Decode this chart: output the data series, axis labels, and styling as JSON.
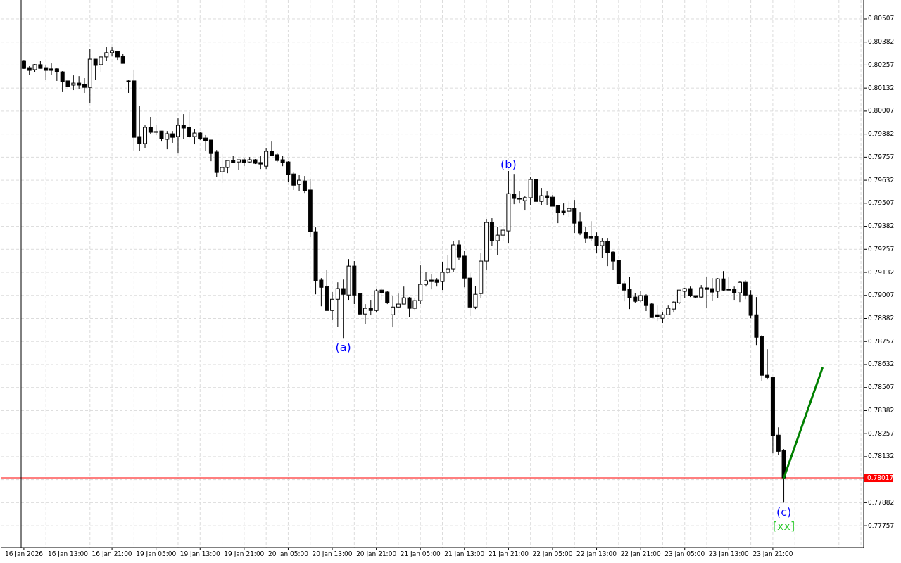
{
  "chart_data": {
    "type": "candlestick",
    "categories": [
      "16 Jan 2026",
      null,
      null,
      null,
      null,
      null,
      null,
      null,
      "16 Jan 13:00",
      null,
      null,
      null,
      null,
      null,
      null,
      null,
      "16 Jan 21:00",
      null,
      null,
      null,
      null,
      null,
      null,
      null,
      "19 Jan 05:00",
      null,
      null,
      null,
      null,
      null,
      null,
      null,
      "19 Jan 13:00",
      null,
      null,
      null,
      null,
      null,
      null,
      null,
      "19 Jan 21:00",
      null,
      null,
      null,
      null,
      null,
      null,
      null,
      "20 Jan 05:00",
      null,
      null,
      null,
      null,
      null,
      null,
      null,
      "20 Jan 13:00",
      null,
      null,
      null,
      null,
      null,
      null,
      null,
      "20 Jan 21:00",
      null,
      null,
      null,
      null,
      null,
      null,
      null,
      "21 Jan 05:00",
      null,
      null,
      null,
      null,
      null,
      null,
      null,
      "21 Jan 13:00",
      null,
      null,
      null,
      null,
      null,
      null,
      null,
      "21 Jan 21:00",
      null,
      null,
      null,
      null,
      null,
      null,
      null,
      "22 Jan 05:00",
      null,
      null,
      null,
      null,
      null,
      null,
      null,
      "22 Jan 13:00",
      null,
      null,
      null,
      null,
      null,
      null,
      null,
      "22 Jan 21:00",
      null,
      null,
      null,
      null,
      null,
      null,
      null,
      "23 Jan 05:00",
      null,
      null,
      null,
      null,
      null,
      null,
      null,
      "23 Jan 13:00",
      null,
      null,
      null,
      null,
      null,
      null,
      null,
      "23 Jan 21:00",
      null,
      null,
      null,
      null,
      null,
      null,
      null,
      null,
      null,
      null,
      null,
      null,
      null,
      null,
      null,
      null
    ],
    "ohlc": [
      [
        0.80281,
        0.80285,
        0.80236,
        0.80239
      ],
      [
        0.80243,
        0.80251,
        0.80205,
        0.80228
      ],
      [
        0.80232,
        0.80262,
        0.8022,
        0.80259
      ],
      [
        0.80259,
        0.80281,
        0.80239,
        0.80239
      ],
      [
        0.80243,
        0.80259,
        0.80178,
        0.80228
      ],
      [
        0.80236,
        0.80266,
        0.80205,
        0.80228
      ],
      [
        0.80236,
        0.80239,
        0.80171,
        0.8022
      ],
      [
        0.8022,
        0.80224,
        0.8011,
        0.80167
      ],
      [
        0.80171,
        0.80182,
        0.80098,
        0.8014
      ],
      [
        0.80148,
        0.80201,
        0.80121,
        0.80159
      ],
      [
        0.80159,
        0.80197,
        0.80125,
        0.80148
      ],
      [
        0.80152,
        0.80186,
        0.80106,
        0.80136
      ],
      [
        0.80136,
        0.80346,
        0.80052,
        0.80289
      ],
      [
        0.80289,
        0.80289,
        0.80178,
        0.80255
      ],
      [
        0.80259,
        0.80308,
        0.8022,
        0.80301
      ],
      [
        0.80301,
        0.80354,
        0.80281,
        0.80324
      ],
      [
        0.80324,
        0.80354,
        0.80304,
        0.80335
      ],
      [
        0.80331,
        0.80335,
        0.80285,
        0.80301
      ],
      [
        0.80304,
        0.80316,
        0.80266,
        0.80266
      ],
      [
        0.80171,
        0.80174,
        0.80106,
        0.80171
      ],
      [
        0.80171,
        0.80232,
        0.79793,
        0.79865
      ],
      [
        0.79869,
        0.80037,
        0.79789,
        0.79831
      ],
      [
        0.79831,
        0.7993,
        0.79808,
        0.79919
      ],
      [
        0.79919,
        0.79976,
        0.79884,
        0.79892
      ],
      [
        0.79896,
        0.7993,
        0.79877,
        0.79892
      ],
      [
        0.79899,
        0.79899,
        0.79842,
        0.79857
      ],
      [
        0.79854,
        0.79899,
        0.798,
        0.79884
      ],
      [
        0.79884,
        0.79899,
        0.79835,
        0.79865
      ],
      [
        0.79869,
        0.79968,
        0.79777,
        0.7993
      ],
      [
        0.7993,
        0.79991,
        0.79854,
        0.79915
      ],
      [
        0.79919,
        0.80003,
        0.79861,
        0.79869
      ],
      [
        0.79869,
        0.79911,
        0.79827,
        0.79888
      ],
      [
        0.79888,
        0.79892,
        0.7985,
        0.79857
      ],
      [
        0.79861,
        0.79877,
        0.79789,
        0.79846
      ],
      [
        0.7985,
        0.7985,
        0.79735,
        0.79777
      ],
      [
        0.79785,
        0.79796,
        0.79651,
        0.79674
      ],
      [
        0.79678,
        0.79773,
        0.79617,
        0.79701
      ],
      [
        0.79701,
        0.79739,
        0.7967,
        0.79739
      ],
      [
        0.79739,
        0.79766,
        0.79728,
        0.79728
      ],
      [
        0.79731,
        0.79743,
        0.79689,
        0.79743
      ],
      [
        0.79743,
        0.7975,
        0.79708,
        0.79728
      ],
      [
        0.79731,
        0.79758,
        0.79724,
        0.79743
      ],
      [
        0.79743,
        0.79747,
        0.7972,
        0.79724
      ],
      [
        0.79728,
        0.79762,
        0.79693,
        0.7972
      ],
      [
        0.79708,
        0.79804,
        0.79693,
        0.79789
      ],
      [
        0.79789,
        0.79842,
        0.79766,
        0.79766
      ],
      [
        0.7977,
        0.79781,
        0.79731,
        0.79739
      ],
      [
        0.79743,
        0.79762,
        0.79708,
        0.79728
      ],
      [
        0.79731,
        0.79735,
        0.79621,
        0.79663
      ],
      [
        0.79666,
        0.79674,
        0.79579,
        0.79605
      ],
      [
        0.79609,
        0.79659,
        0.79575,
        0.79632
      ],
      [
        0.79628,
        0.79655,
        0.79563,
        0.79575
      ],
      [
        0.79579,
        0.7964,
        0.79323,
        0.79353
      ],
      [
        0.79353,
        0.79376,
        0.79013,
        0.79086
      ],
      [
        0.7909,
        0.79101,
        0.78948,
        0.79051
      ],
      [
        0.79055,
        0.79147,
        0.78925,
        0.78925
      ],
      [
        0.78925,
        0.79025,
        0.78876,
        0.78986
      ],
      [
        0.78986,
        0.79078,
        0.78838,
        0.79044
      ],
      [
        0.79044,
        0.79093,
        0.78776,
        0.79013
      ],
      [
        0.79009,
        0.79204,
        0.78983,
        0.79166
      ],
      [
        0.79166,
        0.79193,
        0.7896,
        0.79009
      ],
      [
        0.79017,
        0.79017,
        0.78902,
        0.78906
      ],
      [
        0.78906,
        0.7896,
        0.78853,
        0.78937
      ],
      [
        0.78937,
        0.78983,
        0.78899,
        0.78925
      ],
      [
        0.78925,
        0.7904,
        0.78914,
        0.79032
      ],
      [
        0.79036,
        0.79048,
        0.78983,
        0.79021
      ],
      [
        0.79025,
        0.79032,
        0.7896,
        0.78967
      ],
      [
        0.78902,
        0.79006,
        0.78834,
        0.78944
      ],
      [
        0.78944,
        0.79017,
        0.78937,
        0.7896
      ],
      [
        0.7896,
        0.79055,
        0.7896,
        0.78994
      ],
      [
        0.78994,
        0.78998,
        0.78891,
        0.78937
      ],
      [
        0.78937,
        0.78994,
        0.78925,
        0.78979
      ],
      [
        0.78979,
        0.7917,
        0.7896,
        0.79067
      ],
      [
        0.79067,
        0.79132,
        0.79055,
        0.79086
      ],
      [
        0.7909,
        0.79124,
        0.7904,
        0.79082
      ],
      [
        0.7909,
        0.79101,
        0.79055,
        0.79078
      ],
      [
        0.79082,
        0.79189,
        0.79036,
        0.79132
      ],
      [
        0.79132,
        0.79227,
        0.79124,
        0.79151
      ],
      [
        0.79151,
        0.79304,
        0.79135,
        0.79281
      ],
      [
        0.79281,
        0.79307,
        0.79197,
        0.79216
      ],
      [
        0.7922,
        0.7925,
        0.79051,
        0.79101
      ],
      [
        0.79101,
        0.79128,
        0.78895,
        0.78944
      ],
      [
        0.78944,
        0.79059,
        0.78933,
        0.79013
      ],
      [
        0.79017,
        0.79239,
        0.78994,
        0.79193
      ],
      [
        0.79193,
        0.79422,
        0.79143,
        0.79403
      ],
      [
        0.79403,
        0.79426,
        0.79277,
        0.79304
      ],
      [
        0.79304,
        0.7938,
        0.79227,
        0.79334
      ],
      [
        0.79334,
        0.79403,
        0.79304,
        0.79361
      ],
      [
        0.79357,
        0.79682,
        0.79292,
        0.79559
      ],
      [
        0.79556,
        0.79666,
        0.79502,
        0.79533
      ],
      [
        0.79533,
        0.79571,
        0.79506,
        0.79533
      ],
      [
        0.79521,
        0.79548,
        0.79468,
        0.79537
      ],
      [
        0.79537,
        0.79651,
        0.79498,
        0.79636
      ],
      [
        0.79636,
        0.79636,
        0.79495,
        0.79517
      ],
      [
        0.79517,
        0.7959,
        0.79495,
        0.79548
      ],
      [
        0.79548,
        0.79571,
        0.79498,
        0.79537
      ],
      [
        0.7954,
        0.79552,
        0.79491,
        0.79491
      ],
      [
        0.79495,
        0.79495,
        0.79399,
        0.79456
      ],
      [
        0.79464,
        0.79506,
        0.79441,
        0.79456
      ],
      [
        0.79464,
        0.79517,
        0.7943,
        0.79479
      ],
      [
        0.79479,
        0.79525,
        0.79346,
        0.79399
      ],
      [
        0.79407,
        0.7946,
        0.79334,
        0.79346
      ],
      [
        0.79349,
        0.7938,
        0.79292,
        0.79319
      ],
      [
        0.79326,
        0.7941,
        0.79304,
        0.79319
      ],
      [
        0.79326,
        0.79349,
        0.79235,
        0.79277
      ],
      [
        0.79277,
        0.79319,
        0.79212,
        0.793
      ],
      [
        0.793,
        0.79319,
        0.79166,
        0.79239
      ],
      [
        0.79242,
        0.79246,
        0.79147,
        0.79193
      ],
      [
        0.79197,
        0.792,
        0.79071,
        0.79071
      ],
      [
        0.79071,
        0.79082,
        0.78975,
        0.79036
      ],
      [
        0.7904,
        0.79109,
        0.78933,
        0.78994
      ],
      [
        0.78998,
        0.79021,
        0.78967,
        0.78975
      ],
      [
        0.78979,
        0.79029,
        0.78971,
        0.79006
      ],
      [
        0.79006,
        0.79013,
        0.78922,
        0.78952
      ],
      [
        0.7896,
        0.78967,
        0.78887,
        0.78887
      ],
      [
        0.78902,
        0.78952,
        0.78868,
        0.78891
      ],
      [
        0.78883,
        0.78914,
        0.78857,
        0.78902
      ],
      [
        0.78902,
        0.78952,
        0.78902,
        0.78937
      ],
      [
        0.78933,
        0.78975,
        0.78914,
        0.78971
      ],
      [
        0.78967,
        0.79036,
        0.7896,
        0.79036
      ],
      [
        0.79029,
        0.79048,
        0.78994,
        0.79044
      ],
      [
        0.79044,
        0.79055,
        0.78998,
        0.79006
      ],
      [
        0.79006,
        0.79006,
        0.78994,
        0.78998
      ],
      [
        0.78998,
        0.79063,
        0.78994,
        0.79048
      ],
      [
        0.79048,
        0.79109,
        0.78937,
        0.7904
      ],
      [
        0.79044,
        0.79101,
        0.78979,
        0.79025
      ],
      [
        0.79029,
        0.79101,
        0.78994,
        0.79097
      ],
      [
        0.79097,
        0.79139,
        0.79032,
        0.79036
      ],
      [
        0.7904,
        0.79105,
        0.79036,
        0.79036
      ],
      [
        0.7904,
        0.79055,
        0.78983,
        0.79021
      ],
      [
        0.79021,
        0.79086,
        0.78971,
        0.79078
      ],
      [
        0.79078,
        0.7909,
        0.78986,
        0.79009
      ],
      [
        0.79009,
        0.79036,
        0.78883,
        0.78899
      ],
      [
        0.78902,
        0.78998,
        0.78738,
        0.7878
      ],
      [
        0.78784,
        0.78792,
        0.78543,
        0.78574
      ],
      [
        0.78574,
        0.78715,
        0.78551,
        0.78562
      ],
      [
        0.78562,
        0.78562,
        0.7815,
        0.78245
      ],
      [
        0.78249,
        0.78291,
        0.78142,
        0.78161
      ],
      [
        0.78165,
        0.78173,
        0.77882,
        0.78017
      ],
      null,
      null,
      null,
      null,
      null,
      null,
      null,
      null,
      null,
      null,
      null,
      null,
      null,
      null
    ],
    "series": [
      {
        "type": "line",
        "color": "#008000",
        "values": [
          null,
          null,
          null,
          null,
          null,
          null,
          null,
          null,
          null,
          null,
          null,
          null,
          null,
          null,
          null,
          null,
          null,
          null,
          null,
          null,
          null,
          null,
          null,
          null,
          null,
          null,
          null,
          null,
          null,
          null,
          null,
          null,
          null,
          null,
          null,
          null,
          null,
          null,
          null,
          null,
          null,
          null,
          null,
          null,
          null,
          null,
          null,
          null,
          null,
          null,
          null,
          null,
          null,
          null,
          null,
          null,
          null,
          null,
          null,
          null,
          null,
          null,
          null,
          null,
          null,
          null,
          null,
          null,
          null,
          null,
          null,
          null,
          null,
          null,
          null,
          null,
          null,
          null,
          null,
          null,
          null,
          null,
          null,
          null,
          null,
          null,
          null,
          null,
          null,
          null,
          null,
          null,
          null,
          null,
          null,
          null,
          null,
          null,
          null,
          null,
          null,
          null,
          null,
          null,
          null,
          null,
          null,
          null,
          null,
          null,
          null,
          null,
          null,
          null,
          null,
          null,
          null,
          null,
          null,
          null,
          null,
          null,
          null,
          null,
          null,
          null,
          null,
          null,
          null,
          null,
          null,
          null,
          null,
          null,
          null,
          null,
          null,
          null,
          0.78017,
          null,
          null,
          null,
          null,
          null,
          null,
          0.78613,
          null,
          null,
          null,
          null,
          null,
          null,
          null
        ]
      }
    ],
    "ylim": [
      0.77639,
      0.8061
    ],
    "yticks": [
      0.80507,
      0.80382,
      0.80257,
      0.80132,
      0.80007,
      0.79882,
      0.79757,
      0.79632,
      0.79507,
      0.79382,
      0.79257,
      0.79132,
      0.79007,
      0.78882,
      0.78757,
      0.78632,
      0.78507,
      0.78382,
      0.78257,
      0.78132,
      {
        "value": 0.78007,
        "label": null
      },
      0.77882,
      0.77757
    ],
    "grid": true,
    "ref_lines": [
      {
        "axis": "y",
        "value": 0.78017,
        "label": "0.78017",
        "color": "#ff0000"
      }
    ],
    "annotations": [
      {
        "text": "(a)",
        "y": 0.78776
      },
      {
        "text": "(b)",
        "y": 0.79682
      },
      {
        "text": "(c)",
        "y": 0.77882
      },
      {
        "text": "[xx]",
        "y": 0.77882
      }
    ]
  }
}
